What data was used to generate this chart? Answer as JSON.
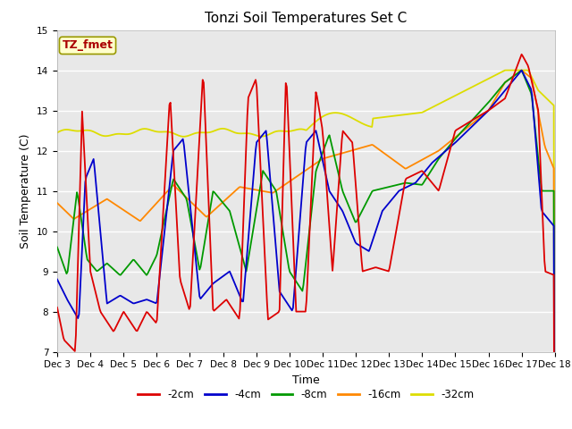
{
  "title": "Tonzi Soil Temperatures Set C",
  "xlabel": "Time",
  "ylabel": "Soil Temperature (C)",
  "ylim": [
    7.0,
    15.0
  ],
  "yticks": [
    7.0,
    8.0,
    9.0,
    10.0,
    11.0,
    12.0,
    13.0,
    14.0,
    15.0
  ],
  "xtick_labels": [
    "Dec 3",
    "Dec 4",
    "Dec 5",
    "Dec 6",
    "Dec 7",
    "Dec 8",
    "Dec 9",
    "Dec 10",
    "Dec 11",
    "Dec 12",
    "Dec 13",
    "Dec 14",
    "Dec 15",
    "Dec 16",
    "Dec 17",
    "Dec 18"
  ],
  "annotation": "TZ_fmet",
  "annotation_color": "#aa0000",
  "annotation_bg": "#ffffcc",
  "annotation_edge": "#999900",
  "colors": {
    "-2cm": "#dd0000",
    "-4cm": "#0000cc",
    "-8cm": "#009900",
    "-16cm": "#ff8800",
    "-32cm": "#dddd00"
  },
  "legend_labels": [
    "-2cm",
    "-4cm",
    "-8cm",
    "-16cm",
    "-32cm"
  ],
  "bg_color": "#e8e8e8",
  "title_fontsize": 11,
  "label_fontsize": 9,
  "tick_fontsize": 7.5
}
